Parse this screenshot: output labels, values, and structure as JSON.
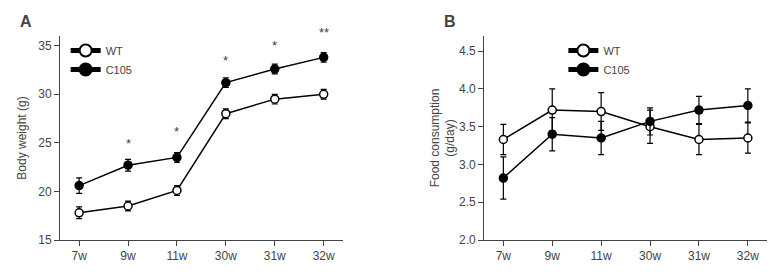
{
  "chart_data": [
    {
      "type": "line",
      "label": "A",
      "categories": [
        "7w",
        "9w",
        "11w",
        "30w",
        "31w",
        "32w"
      ],
      "series": [
        {
          "name": "WT",
          "color": "black",
          "marker": "open circle",
          "values": [
            17.8,
            18.5,
            20.1,
            28.0,
            29.5,
            30.0
          ],
          "yerr": [
            0.6,
            0.5,
            0.5,
            0.5,
            0.5,
            0.5
          ]
        },
        {
          "name": "C105",
          "color": "black",
          "marker": "circle",
          "values": [
            20.6,
            22.7,
            23.5,
            31.2,
            32.6,
            33.8
          ],
          "yerr": [
            0.8,
            0.6,
            0.5,
            0.5,
            0.5,
            0.5
          ]
        }
      ],
      "ylabel": "Body weight (g)",
      "ylim": [
        15,
        36
      ],
      "yticks": [
        15,
        20,
        25,
        30,
        35
      ],
      "annotations": [
        {
          "x": "9w",
          "y": 24.0,
          "text": "*"
        },
        {
          "x": "11w",
          "y": 25.2,
          "text": "*"
        },
        {
          "x": "30w",
          "y": 32.5,
          "text": "*"
        },
        {
          "x": "31w",
          "y": 34.0,
          "text": "*"
        },
        {
          "x": "32w",
          "y": 35.4,
          "text": "**"
        }
      ],
      "legend": "upper left",
      "grid": false
    },
    {
      "type": "line",
      "label": "B",
      "categories": [
        "7w",
        "9w",
        "11w",
        "30w",
        "31w",
        "32w"
      ],
      "series": [
        {
          "name": "WT",
          "color": "black",
          "marker": "open circle",
          "values": [
            3.33,
            3.72,
            3.7,
            3.5,
            3.33,
            3.35
          ],
          "yerr": [
            0.2,
            0.28,
            0.25,
            0.22,
            0.2,
            0.2
          ]
        },
        {
          "name": "C105",
          "color": "black",
          "marker": "circle",
          "values": [
            2.82,
            3.4,
            3.35,
            3.57,
            3.72,
            3.78
          ],
          "yerr": [
            0.28,
            0.22,
            0.22,
            0.18,
            0.18,
            0.22
          ]
        }
      ],
      "ylabel": "Food consumption\n(g/day)",
      "ylim": [
        2.0,
        4.7
      ],
      "yticks": [
        {
          "value": 2.0,
          "label": "2.0"
        },
        2.5,
        {
          "value": 3.0,
          "label": "3.0"
        },
        3.5,
        {
          "value": 4.0,
          "label": "4.0"
        },
        4.5
      ],
      "legend": "upper left",
      "grid": false
    }
  ]
}
